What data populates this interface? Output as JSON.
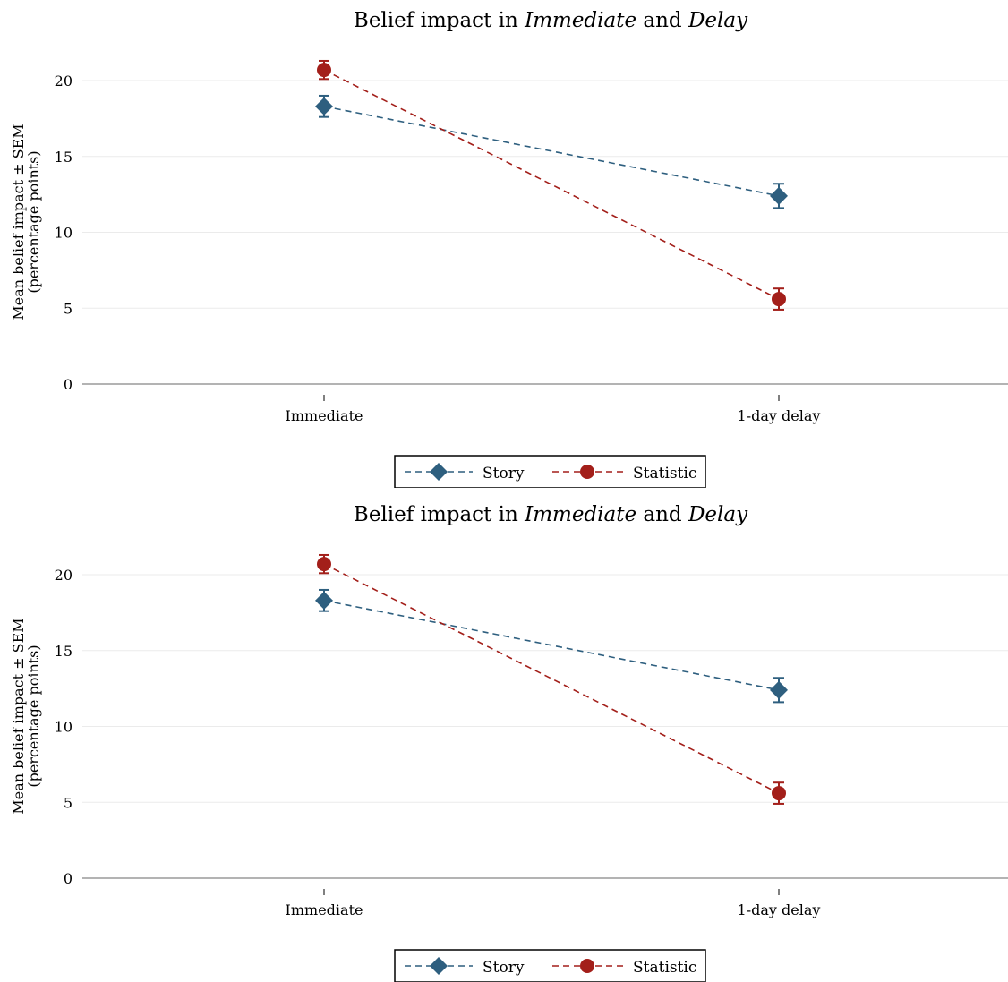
{
  "chart_data": [
    {
      "type": "line",
      "title": "Belief impact in Immediate and Delay",
      "title_parts": [
        {
          "text": "Belief impact in ",
          "italic": false
        },
        {
          "text": "Immediate",
          "italic": true
        },
        {
          "text": " and ",
          "italic": false
        },
        {
          "text": "Delay",
          "italic": true
        }
      ],
      "ylabel_lines": [
        "Mean belief impact ± SEM",
        "(percentage points)"
      ],
      "xlabel": "",
      "categories": [
        "Immediate",
        "1-day delay"
      ],
      "ylim": [
        0,
        22
      ],
      "yticks": [
        0,
        5,
        10,
        15,
        20
      ],
      "grid": "horizontal",
      "legend_position": "bottom-center",
      "series": [
        {
          "name": "Story",
          "values": [
            18.3,
            12.4
          ],
          "sem": [
            0.7,
            0.8
          ],
          "color": "#2e5f7f",
          "marker": "diamond",
          "line_style": "dashed"
        },
        {
          "name": "Statistic",
          "values": [
            20.7,
            5.6
          ],
          "sem": [
            0.6,
            0.7
          ],
          "color": "#a31f1a",
          "marker": "circle",
          "line_style": "dashed"
        }
      ]
    },
    {
      "type": "line",
      "title": "Belief impact in Immediate and Delay",
      "title_parts": [
        {
          "text": "Belief impact in ",
          "italic": false
        },
        {
          "text": "Immediate",
          "italic": true
        },
        {
          "text": " and ",
          "italic": false
        },
        {
          "text": "Delay",
          "italic": true
        }
      ],
      "ylabel_lines": [
        "Mean belief impact ± SEM",
        "(percentage points)"
      ],
      "xlabel": "",
      "categories": [
        "Immediate",
        "1-day delay"
      ],
      "ylim": [
        0,
        22
      ],
      "yticks": [
        0,
        5,
        10,
        15,
        20
      ],
      "grid": "horizontal",
      "legend_position": "bottom-center",
      "series": [
        {
          "name": "Story",
          "values": [
            18.3,
            12.4
          ],
          "sem": [
            0.7,
            0.8
          ],
          "color": "#2e5f7f",
          "marker": "diamond",
          "line_style": "dashed"
        },
        {
          "name": "Statistic",
          "values": [
            20.7,
            5.6
          ],
          "sem": [
            0.6,
            0.7
          ],
          "color": "#a31f1a",
          "marker": "circle",
          "line_style": "dashed"
        }
      ]
    }
  ]
}
